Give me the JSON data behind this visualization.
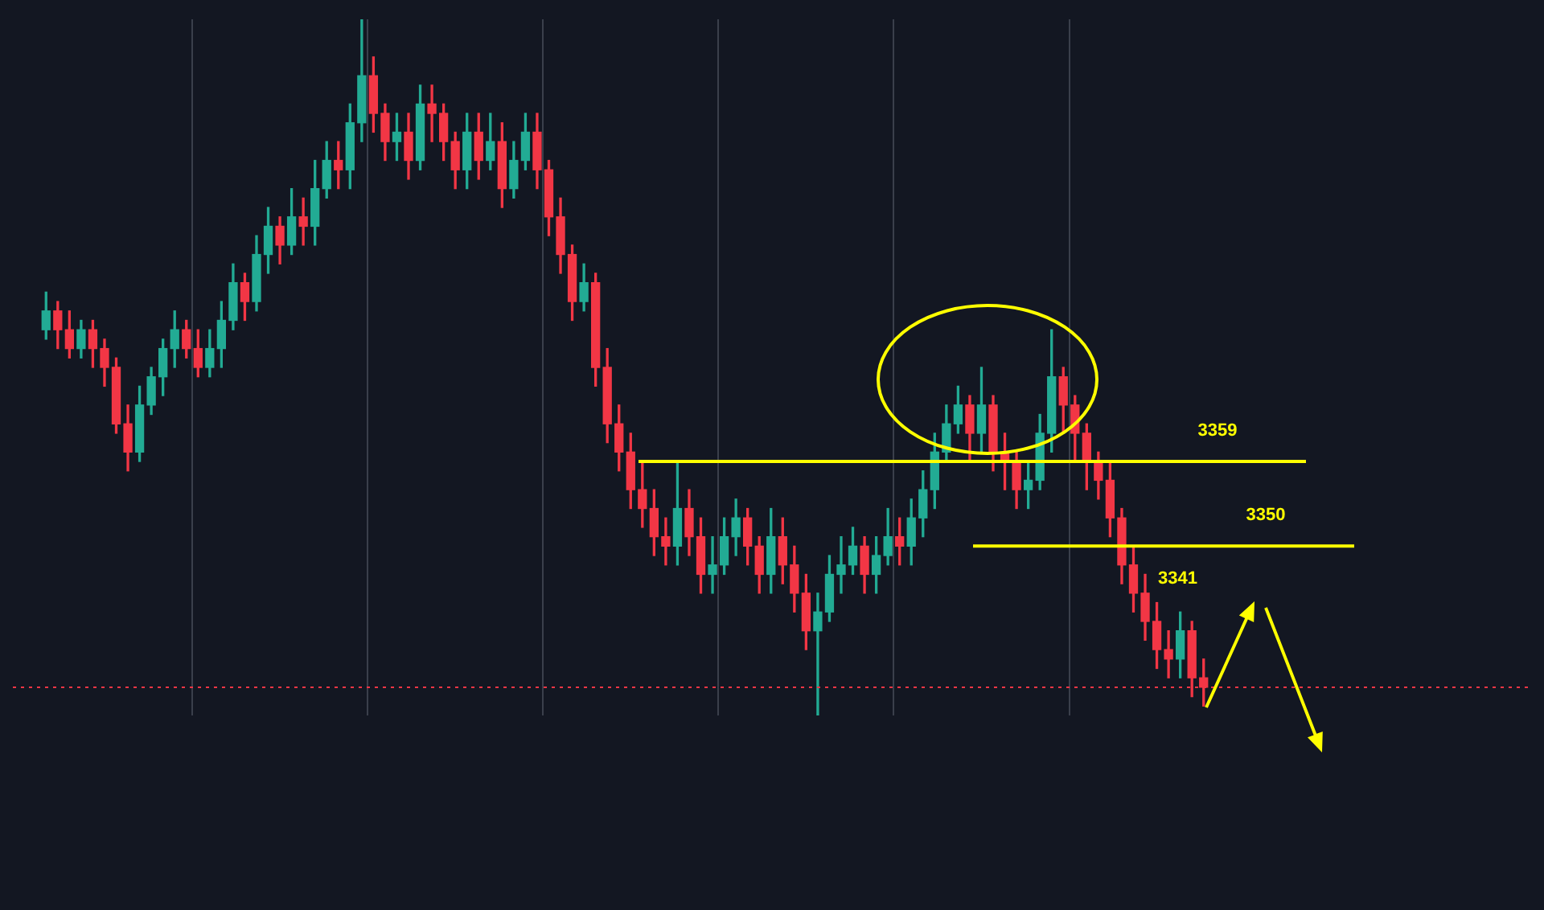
{
  "chart_data": {
    "type": "candlestick",
    "ylim": [
      3332,
      3406
    ],
    "grid": "x",
    "legend": false,
    "tick_labels": false,
    "categories": [
      null,
      null,
      null,
      null,
      null,
      null,
      null,
      null,
      null,
      null,
      null,
      null,
      null,
      null,
      null,
      null,
      null,
      null,
      null,
      null,
      null,
      null,
      null,
      null,
      null,
      null,
      null,
      null,
      null,
      null,
      null,
      null,
      null,
      null,
      null,
      null,
      null,
      null,
      null,
      null,
      null,
      null,
      null,
      null,
      null,
      null,
      null,
      null,
      null,
      null,
      null,
      null,
      null,
      null,
      null,
      null,
      null,
      null,
      null,
      null,
      null,
      null,
      null,
      null,
      null,
      null,
      null,
      null,
      null,
      null,
      null,
      null,
      null,
      null,
      null,
      null,
      null,
      null,
      null,
      null,
      null,
      null,
      null,
      null,
      null,
      null,
      null,
      null,
      null,
      null,
      null,
      null,
      null,
      null,
      null,
      null,
      null,
      null,
      null,
      null
    ],
    "ohlc": [
      [
        3373,
        3377,
        3372,
        3375
      ],
      [
        3375,
        3376,
        3371,
        3373
      ],
      [
        3373,
        3375,
        3370,
        3371
      ],
      [
        3371,
        3374,
        3370,
        3373
      ],
      [
        3373,
        3374,
        3369,
        3371
      ],
      [
        3371,
        3372,
        3367,
        3369
      ],
      [
        3369,
        3370,
        3362,
        3363
      ],
      [
        3363,
        3365,
        3358,
        3360
      ],
      [
        3360,
        3367,
        3359,
        3365
      ],
      [
        3365,
        3369,
        3364,
        3368
      ],
      [
        3368,
        3372,
        3366,
        3371
      ],
      [
        3371,
        3375,
        3369,
        3373
      ],
      [
        3373,
        3374,
        3370,
        3371
      ],
      [
        3371,
        3373,
        3368,
        3369
      ],
      [
        3369,
        3373,
        3368,
        3371
      ],
      [
        3371,
        3376,
        3369,
        3374
      ],
      [
        3374,
        3380,
        3373,
        3378
      ],
      [
        3378,
        3379,
        3374,
        3376
      ],
      [
        3376,
        3383,
        3375,
        3381
      ],
      [
        3381,
        3386,
        3379,
        3384
      ],
      [
        3384,
        3385,
        3380,
        3382
      ],
      [
        3382,
        3388,
        3381,
        3385
      ],
      [
        3385,
        3387,
        3382,
        3384
      ],
      [
        3384,
        3391,
        3382,
        3388
      ],
      [
        3388,
        3393,
        3387,
        3391
      ],
      [
        3391,
        3393,
        3388,
        3390
      ],
      [
        3390,
        3397,
        3388,
        3395
      ],
      [
        3395,
        3406,
        3393,
        3400
      ],
      [
        3400,
        3402,
        3394,
        3396
      ],
      [
        3396,
        3397,
        3391,
        3393
      ],
      [
        3393,
        3396,
        3391,
        3394
      ],
      [
        3394,
        3396,
        3389,
        3391
      ],
      [
        3391,
        3399,
        3390,
        3397
      ],
      [
        3397,
        3399,
        3393,
        3396
      ],
      [
        3396,
        3397,
        3391,
        3393
      ],
      [
        3393,
        3394,
        3388,
        3390
      ],
      [
        3390,
        3396,
        3388,
        3394
      ],
      [
        3394,
        3396,
        3389,
        3391
      ],
      [
        3391,
        3396,
        3390,
        3393
      ],
      [
        3393,
        3395,
        3386,
        3388
      ],
      [
        3388,
        3393,
        3387,
        3391
      ],
      [
        3391,
        3396,
        3390,
        3394
      ],
      [
        3394,
        3396,
        3388,
        3390
      ],
      [
        3390,
        3391,
        3383,
        3385
      ],
      [
        3385,
        3387,
        3379,
        3381
      ],
      [
        3381,
        3382,
        3374,
        3376
      ],
      [
        3376,
        3380,
        3375,
        3378
      ],
      [
        3378,
        3379,
        3367,
        3369
      ],
      [
        3369,
        3371,
        3361,
        3363
      ],
      [
        3363,
        3365,
        3358,
        3360
      ],
      [
        3360,
        3362,
        3354,
        3356
      ],
      [
        3356,
        3359,
        3352,
        3354
      ],
      [
        3354,
        3356,
        3349,
        3351
      ],
      [
        3351,
        3353,
        3348,
        3350
      ],
      [
        3350,
        3359,
        3348,
        3354
      ],
      [
        3354,
        3356,
        3349,
        3351
      ],
      [
        3351,
        3353,
        3345,
        3347
      ],
      [
        3347,
        3351,
        3345,
        3348
      ],
      [
        3348,
        3353,
        3347,
        3351
      ],
      [
        3351,
        3355,
        3349,
        3353
      ],
      [
        3353,
        3354,
        3348,
        3350
      ],
      [
        3350,
        3351,
        3345,
        3347
      ],
      [
        3347,
        3354,
        3345,
        3351
      ],
      [
        3351,
        3353,
        3346,
        3348
      ],
      [
        3348,
        3350,
        3343,
        3345
      ],
      [
        3345,
        3347,
        3339,
        3341
      ],
      [
        3341,
        3345,
        3332,
        3343
      ],
      [
        3343,
        3349,
        3342,
        3347
      ],
      [
        3347,
        3351,
        3345,
        3348
      ],
      [
        3348,
        3352,
        3347,
        3350
      ],
      [
        3350,
        3351,
        3345,
        3347
      ],
      [
        3347,
        3351,
        3345,
        3349
      ],
      [
        3349,
        3354,
        3348,
        3351
      ],
      [
        3351,
        3353,
        3348,
        3350
      ],
      [
        3350,
        3355,
        3348,
        3353
      ],
      [
        3353,
        3358,
        3351,
        3356
      ],
      [
        3356,
        3362,
        3354,
        3360
      ],
      [
        3360,
        3365,
        3359,
        3363
      ],
      [
        3363,
        3367,
        3362,
        3365
      ],
      [
        3365,
        3366,
        3359,
        3362
      ],
      [
        3362,
        3369,
        3360,
        3365
      ],
      [
        3365,
        3366,
        3358,
        3360
      ],
      [
        3360,
        3362,
        3356,
        3359
      ],
      [
        3359,
        3360,
        3354,
        3356
      ],
      [
        3356,
        3359,
        3354,
        3357
      ],
      [
        3357,
        3364,
        3356,
        3362
      ],
      [
        3362,
        3373,
        3360,
        3368
      ],
      [
        3368,
        3369,
        3362,
        3365
      ],
      [
        3365,
        3366,
        3359,
        3362
      ],
      [
        3362,
        3363,
        3356,
        3359
      ],
      [
        3359,
        3360,
        3355,
        3357
      ],
      [
        3357,
        3359,
        3351,
        3353
      ],
      [
        3353,
        3354,
        3346,
        3348
      ],
      [
        3348,
        3350,
        3343,
        3345
      ],
      [
        3345,
        3347,
        3340,
        3342
      ],
      [
        3342,
        3344,
        3337,
        3339
      ],
      [
        3339,
        3341,
        3336,
        3338
      ],
      [
        3338,
        3343,
        3336,
        3341
      ],
      [
        3341,
        3342,
        3334,
        3336
      ],
      [
        3336,
        3338,
        3333,
        3335
      ]
    ],
    "ref_lines": [
      {
        "axis": "y",
        "value": 3359,
        "label": "3359",
        "color": "#ffff00"
      },
      {
        "axis": "y",
        "value": 3350,
        "label": "3350",
        "color": "#ffff00"
      },
      {
        "axis": "y",
        "value": 3335,
        "color": "#f23645",
        "line_style": "dotted"
      }
    ],
    "annotations": [
      "3341"
    ]
  }
}
